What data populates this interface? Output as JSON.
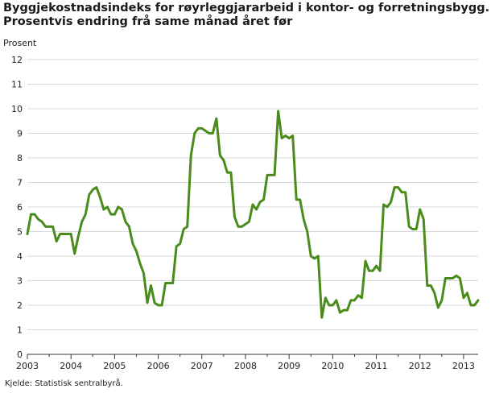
{
  "title_line1": "Byggjekostnadsindeks for røyrleggjararbeid i kontor- og forretningsbygg.",
  "title_line2": "Prosentvis endring frå same månad året før",
  "source": "Kjelde: Statistisk sentralbyrå.",
  "colors": {
    "series": "#4a8c1c",
    "grid": "#d9d9d9",
    "axis": "#333333"
  },
  "chart_data": {
    "type": "line",
    "title": "Byggjekostnadsindeks for røyrleggjararbeid i kontor- og forretningsbygg. Prosentvis endring frå same månad året før",
    "ylabel": "Prosent",
    "xlabel": "",
    "ylim": [
      0,
      12
    ],
    "yticks": [
      "0",
      "1",
      "2",
      "3",
      "4",
      "5",
      "6",
      "7",
      "8",
      "9",
      "10",
      "11",
      "12"
    ],
    "xlim": [
      "2003-01",
      "2013-05"
    ],
    "xticks": [
      "2003",
      "2004",
      "2005",
      "2006",
      "2007",
      "2008",
      "2009",
      "2010",
      "2011",
      "2012",
      "2013"
    ],
    "grid": "horizontal",
    "series": [
      {
        "x": [
          "2003-01",
          "2003-02",
          "2003-03",
          "2003-04",
          "2003-05",
          "2003-06",
          "2003-07",
          "2003-08",
          "2003-09",
          "2003-10",
          "2003-11",
          "2003-12",
          "2004-01",
          "2004-02",
          "2004-03",
          "2004-04",
          "2004-05",
          "2004-06",
          "2004-07",
          "2004-08",
          "2004-09",
          "2004-10",
          "2004-11",
          "2004-12",
          "2005-01",
          "2005-02",
          "2005-03",
          "2005-04",
          "2005-05",
          "2005-06",
          "2005-07",
          "2005-08",
          "2005-09",
          "2005-10",
          "2005-11",
          "2005-12",
          "2006-01",
          "2006-02",
          "2006-03",
          "2006-04",
          "2006-05",
          "2006-06",
          "2006-07",
          "2006-08",
          "2006-09",
          "2006-10",
          "2006-11",
          "2006-12",
          "2007-01",
          "2007-02",
          "2007-03",
          "2007-04",
          "2007-05",
          "2007-06",
          "2007-07",
          "2007-08",
          "2007-09",
          "2007-10",
          "2007-11",
          "2007-12",
          "2008-01",
          "2008-02",
          "2008-03",
          "2008-04",
          "2008-05",
          "2008-06",
          "2008-07",
          "2008-08",
          "2008-09",
          "2008-10",
          "2008-11",
          "2008-12",
          "2009-01",
          "2009-02",
          "2009-03",
          "2009-04",
          "2009-05",
          "2009-06",
          "2009-07",
          "2009-08",
          "2009-09",
          "2009-10",
          "2009-11",
          "2009-12",
          "2010-01",
          "2010-02",
          "2010-03",
          "2010-04",
          "2010-05",
          "2010-06",
          "2010-07",
          "2010-08",
          "2010-09",
          "2010-10",
          "2010-11",
          "2010-12",
          "2011-01",
          "2011-02",
          "2011-03",
          "2011-04",
          "2011-05",
          "2011-06",
          "2011-07",
          "2011-08",
          "2011-09",
          "2011-10",
          "2011-11",
          "2011-12",
          "2012-01",
          "2012-02",
          "2012-03",
          "2012-04",
          "2012-05",
          "2012-06",
          "2012-07",
          "2012-08",
          "2012-09",
          "2012-10",
          "2012-11",
          "2012-12",
          "2013-01",
          "2013-02",
          "2013-03",
          "2013-04",
          "2013-05"
        ],
        "values": [
          4.9,
          5.7,
          5.7,
          5.5,
          5.4,
          5.2,
          5.2,
          5.2,
          4.6,
          4.9,
          4.9,
          4.9,
          4.9,
          4.1,
          4.8,
          5.4,
          5.7,
          6.5,
          6.7,
          6.8,
          6.4,
          5.9,
          6.0,
          5.7,
          5.7,
          6.0,
          5.9,
          5.4,
          5.2,
          4.5,
          4.2,
          3.7,
          3.3,
          2.1,
          2.8,
          2.1,
          2.0,
          2.0,
          2.9,
          2.9,
          2.9,
          4.4,
          4.5,
          5.1,
          5.2,
          8.1,
          9.0,
          9.2,
          9.2,
          9.1,
          9.0,
          9.0,
          9.6,
          8.1,
          7.9,
          7.4,
          7.4,
          5.6,
          5.2,
          5.2,
          5.3,
          5.4,
          6.1,
          5.9,
          6.2,
          6.3,
          7.3,
          7.3,
          7.3,
          9.9,
          8.8,
          8.9,
          8.8,
          8.9,
          6.3,
          6.3,
          5.5,
          5.0,
          4.0,
          3.9,
          4.0,
          1.5,
          2.3,
          2.0,
          2.0,
          2.2,
          1.7,
          1.8,
          1.8,
          2.2,
          2.2,
          2.4,
          2.3,
          3.8,
          3.4,
          3.4,
          3.6,
          3.4,
          6.1,
          6.0,
          6.2,
          6.8,
          6.8,
          6.6,
          6.6,
          5.2,
          5.1,
          5.1,
          5.9,
          5.5,
          2.8,
          2.8,
          2.5,
          1.9,
          2.2,
          3.1,
          3.1,
          3.1,
          3.2,
          3.1,
          2.3,
          2.5,
          2.0,
          2.0,
          2.2
        ]
      }
    ]
  }
}
